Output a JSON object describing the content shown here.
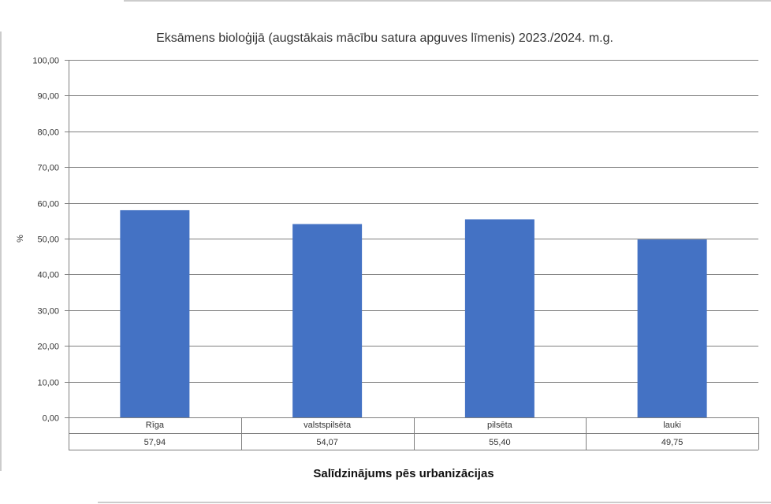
{
  "chart_data": {
    "type": "bar",
    "title": "Eksāmens bioloģijā  (augstākais mācību satura apguves līmenis) 2023./2024. m.g.",
    "xlabel": "Salīdzinājums pēs urbanizācijas",
    "ylabel": "%",
    "categories": [
      "Rīga",
      "valstspilsēta",
      "pilsēta",
      "lauki"
    ],
    "values": [
      57.94,
      54.07,
      55.4,
      49.75
    ],
    "value_labels": [
      "57,94",
      "54,07",
      "55,40",
      "49,75"
    ],
    "ylim": [
      0,
      100
    ],
    "yticks": [
      "0,00",
      "10,00",
      "20,00",
      "30,00",
      "40,00",
      "50,00",
      "60,00",
      "70,00",
      "80,00",
      "90,00",
      "100,00"
    ],
    "grid": true,
    "legend": "none",
    "data_table": true,
    "colors": {
      "bar": "#4472C4",
      "grid": "#7f7f7f",
      "axis": "#7f7f7f"
    }
  }
}
